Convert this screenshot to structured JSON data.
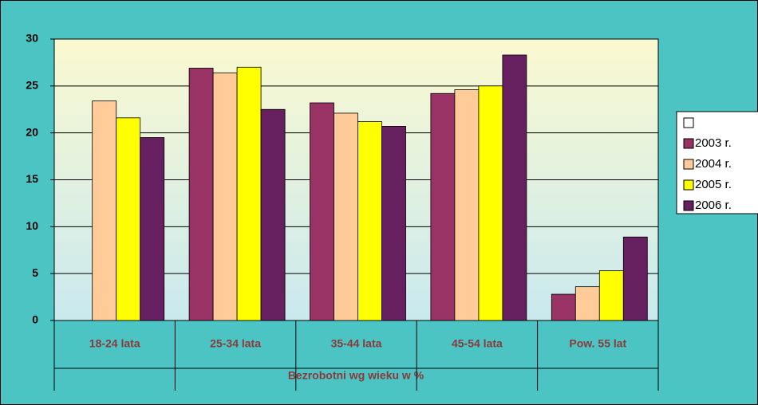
{
  "chart_data": {
    "type": "bar",
    "categories": [
      "18-24 lata",
      "25-34 lata",
      "35-44 lata",
      "45-54 lata",
      "Pow. 55 lat"
    ],
    "xlabel": "Bezrobotni wg wieku w %",
    "series": [
      {
        "name": "2003 r.",
        "color": "#993366",
        "values": [
          null,
          26.9,
          23.2,
          24.2,
          2.8
        ]
      },
      {
        "name": "2004 r.",
        "color": "#ffcc99",
        "values": [
          23.4,
          26.4,
          22.1,
          24.6,
          3.6
        ]
      },
      {
        "name": "2005 r.",
        "color": "#ffff00",
        "values": [
          21.6,
          27.0,
          21.2,
          25.0,
          5.3
        ]
      },
      {
        "name": "2006 r.",
        "color": "#662060",
        "values": [
          19.5,
          22.5,
          20.7,
          28.3,
          8.9
        ]
      }
    ],
    "ylim": [
      0,
      30
    ],
    "yticks": [
      0,
      5,
      10,
      15,
      20,
      25,
      30
    ],
    "grid": true
  }
}
